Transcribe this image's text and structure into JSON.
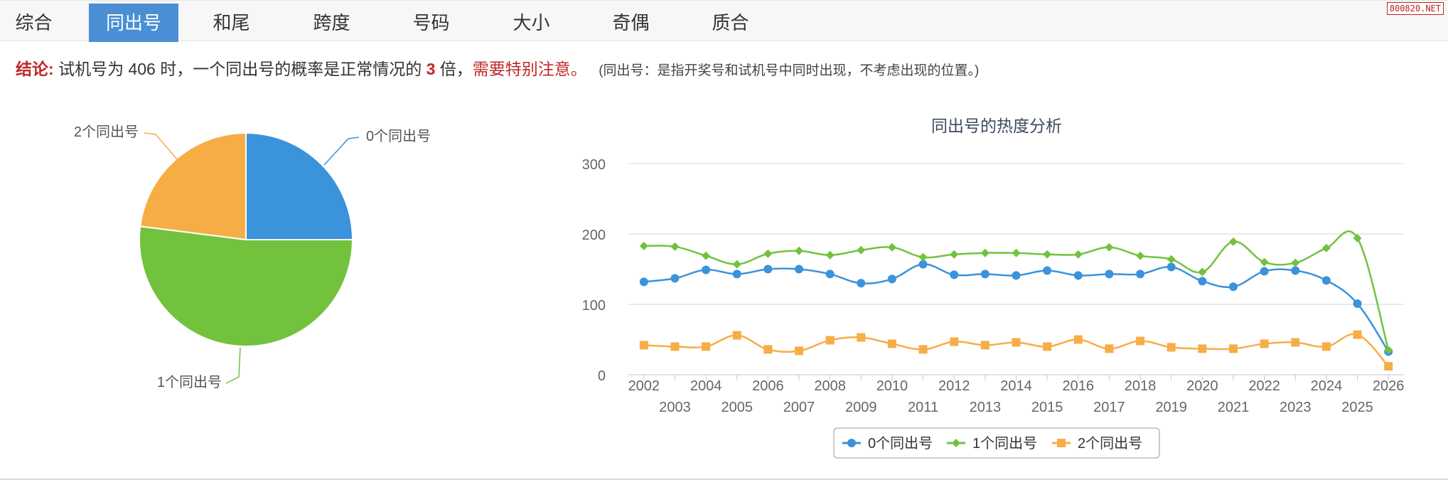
{
  "watermark": "800820.NET",
  "tabs": [
    {
      "label": "综合",
      "active": false
    },
    {
      "label": "同出号",
      "active": true
    },
    {
      "label": "和尾",
      "active": false
    },
    {
      "label": "跨度",
      "active": false
    },
    {
      "label": "号码",
      "active": false
    },
    {
      "label": "大小",
      "active": false
    },
    {
      "label": "奇偶",
      "active": false
    },
    {
      "label": "质合",
      "active": false
    }
  ],
  "conclusion": {
    "label": "结论:",
    "text1": "试机号为 406 时，一个同出号的概率是正常情况的",
    "multiple": "3",
    "text2": "倍，",
    "warning": "需要特别注意。",
    "note": "(同出号：是指开奖号和试机号中同时出现，不考虑出现的位置。)"
  },
  "colors": {
    "series0": "#3a93db",
    "series1": "#72c23e",
    "series2": "#f7ad46",
    "accent_red": "#c0282a",
    "tab_active": "#4a8fd4"
  },
  "chart_data": [
    {
      "type": "pie",
      "slices": [
        {
          "name": "0个同出号",
          "value": 25
        },
        {
          "name": "1个同出号",
          "value": 52
        },
        {
          "name": "2个同出号",
          "value": 23
        }
      ]
    },
    {
      "type": "line",
      "title": "同出号的热度分析",
      "x": [
        "2002",
        "2003",
        "2004",
        "2005",
        "2006",
        "2007",
        "2008",
        "2009",
        "2010",
        "2011",
        "2012",
        "2013",
        "2014",
        "2015",
        "2016",
        "2017",
        "2018",
        "2019",
        "2020",
        "2021",
        "2022",
        "2023",
        "2024",
        "2025",
        "2026"
      ],
      "ylim": [
        0,
        300
      ],
      "yticks": [
        0,
        100,
        200,
        300
      ],
      "grid": true,
      "legend": "bottom-center",
      "series": [
        {
          "name": "0个同出号",
          "marker": "circle",
          "values": [
            132,
            137,
            149,
            143,
            150,
            150,
            143,
            130,
            136,
            157,
            142,
            143,
            141,
            148,
            141,
            143,
            143,
            153,
            133,
            125,
            147,
            148,
            134,
            101,
            33
          ]
        },
        {
          "name": "1个同出号",
          "marker": "diamond",
          "values": [
            183,
            182,
            169,
            157,
            172,
            176,
            170,
            177,
            181,
            167,
            171,
            173,
            173,
            171,
            171,
            181,
            169,
            164,
            146,
            189,
            160,
            159,
            180,
            194,
            35
          ]
        },
        {
          "name": "2个同出号",
          "marker": "square",
          "values": [
            42,
            40,
            40,
            56,
            36,
            34,
            49,
            53,
            44,
            36,
            47,
            42,
            46,
            40,
            50,
            37,
            48,
            39,
            37,
            37,
            44,
            46,
            40,
            57,
            12
          ]
        }
      ]
    }
  ]
}
